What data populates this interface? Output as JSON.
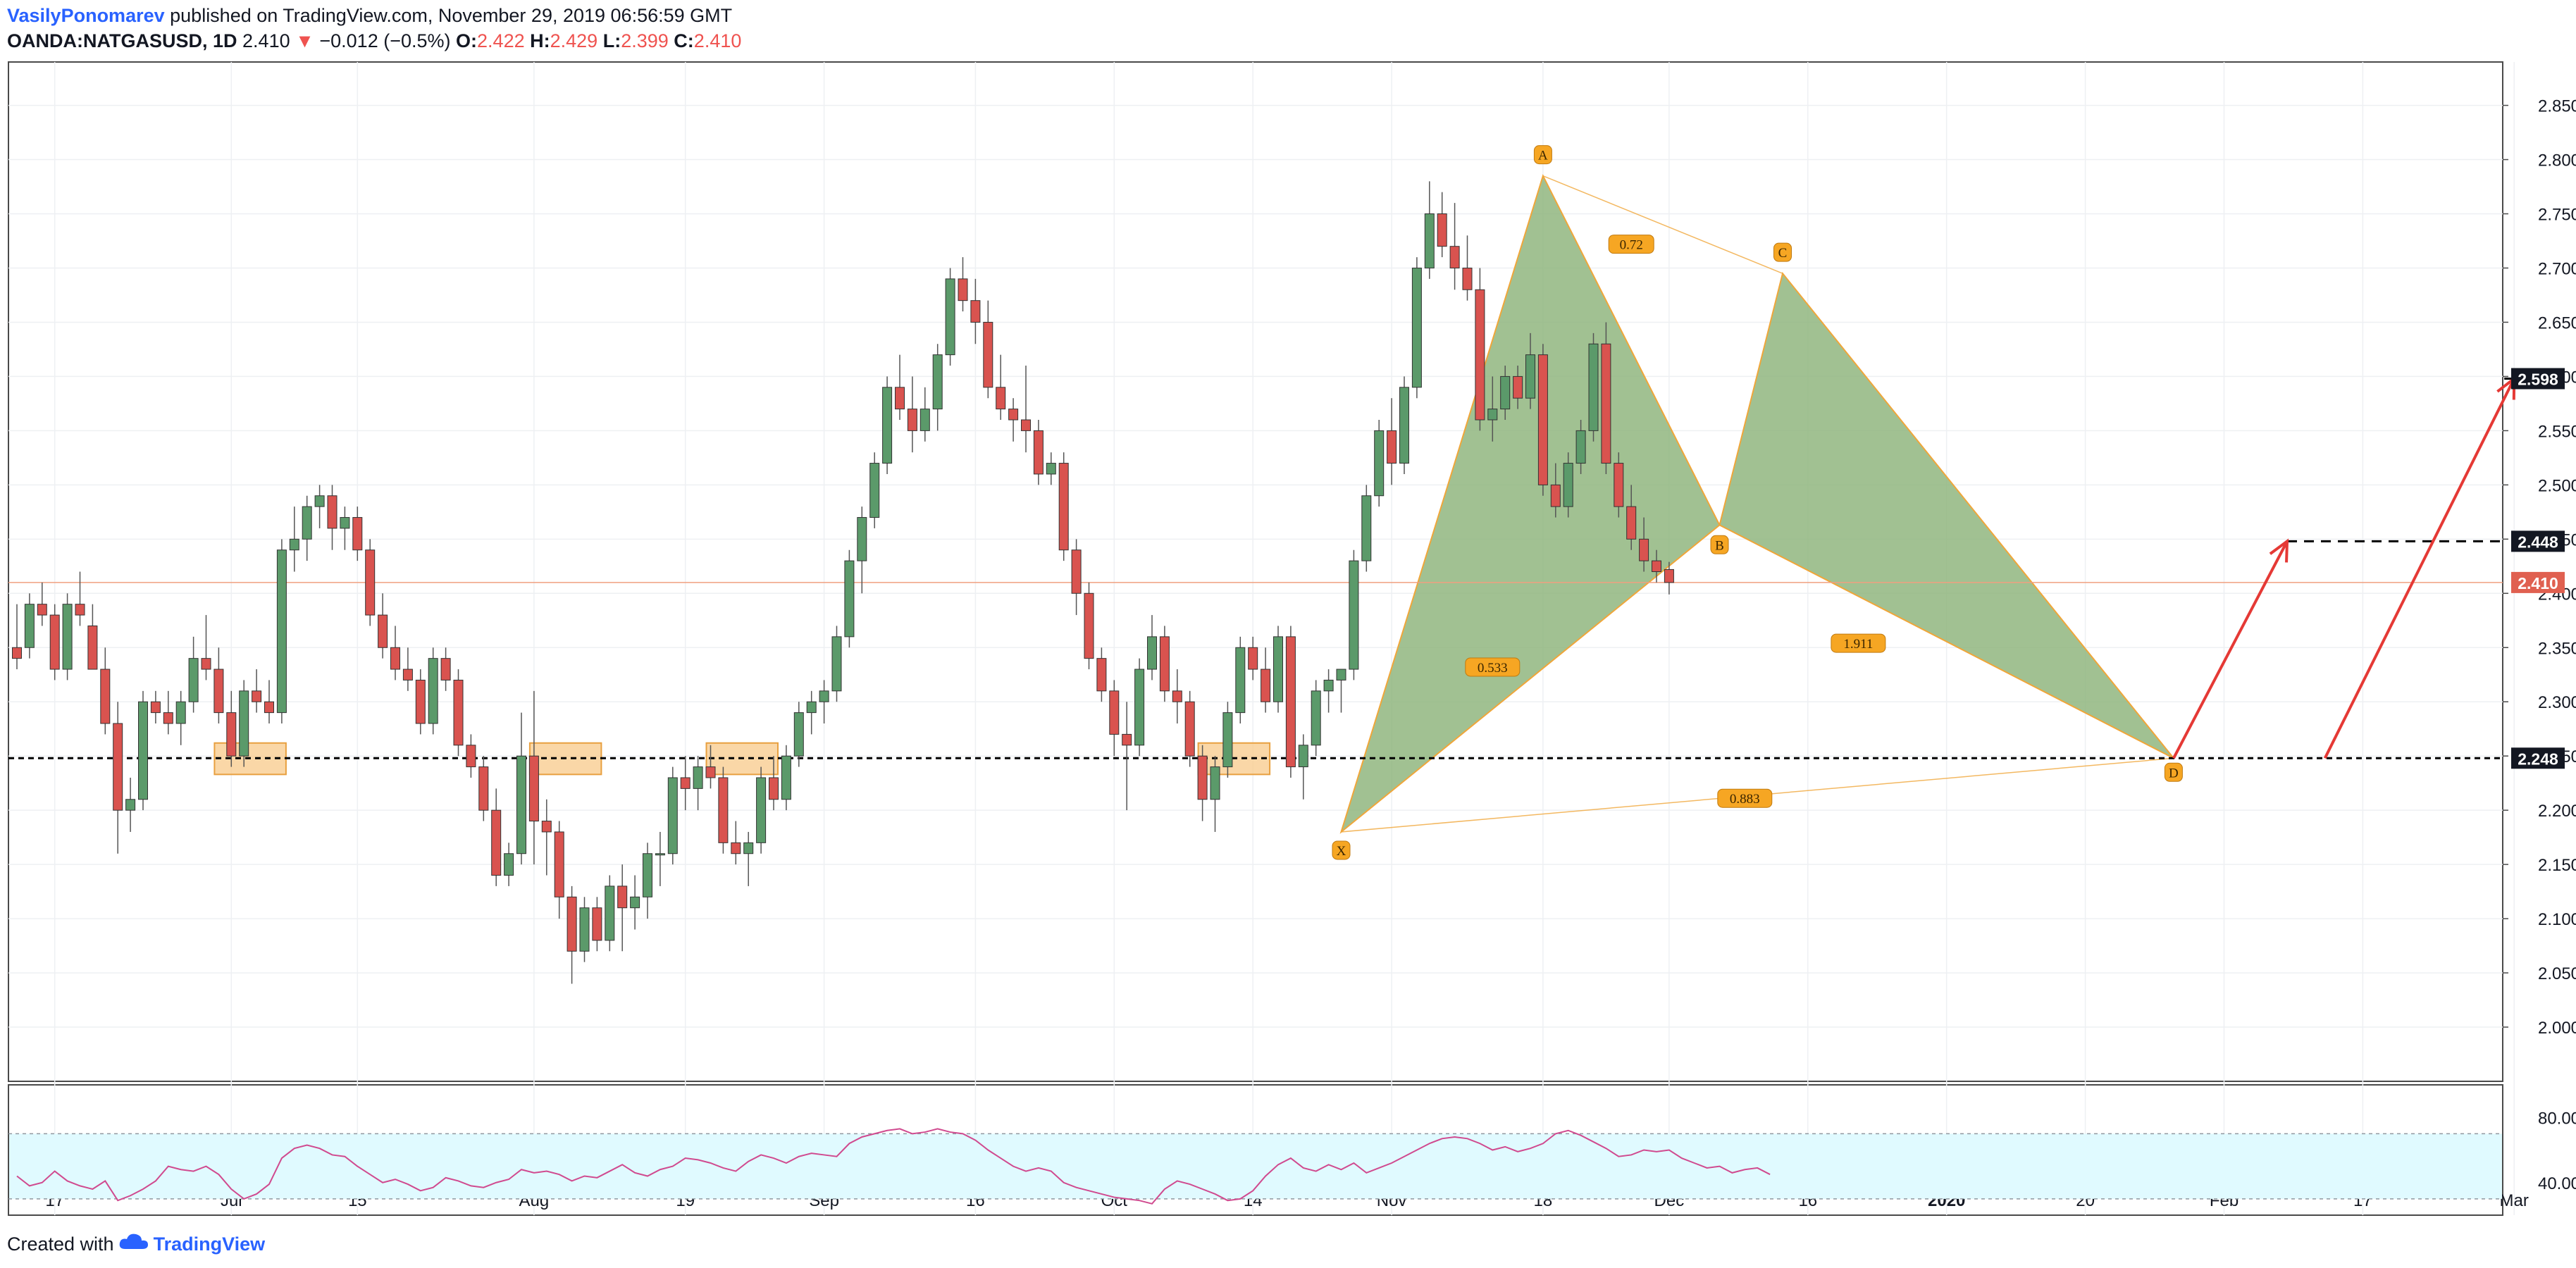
{
  "header": {
    "author": "VasilyPonomarev",
    "published_text": "published on TradingView.com, November 29, 2019 06:56:59 GMT",
    "symbol": "OANDA:NATGASUSD, 1D",
    "last": "2.410",
    "change": "−0.012 (−0.5%)",
    "open_label": "O:",
    "open": "2.422",
    "high_label": "H:",
    "high": "2.429",
    "low_label": "L:",
    "low": "2.399",
    "close_label": "C:",
    "close": "2.410"
  },
  "footer": {
    "created_with": "Created with",
    "brand": "TradingView"
  },
  "colors": {
    "up": "#5b9a6a",
    "down": "#d9534f",
    "pattern_fill": "#8cb37a",
    "pattern_edge": "#f0a63a",
    "badge": "#f6a623",
    "arrow": "#e53935",
    "rsi": "#d04a8f",
    "rsi_band": "#e0faff",
    "price_line": "#f0a080",
    "price_label_bg": "#e06050"
  },
  "chart_data": [
    {
      "type": "candlestick",
      "title": "OANDA:NATGASUSD, 1D",
      "ylim": [
        1.95,
        2.89
      ],
      "y_ticks": [
        "2.000",
        "2.050",
        "2.100",
        "2.150",
        "2.200",
        "2.250",
        "2.300",
        "2.350",
        "2.400",
        "2.450",
        "2.500",
        "2.550",
        "2.600",
        "2.650",
        "2.700",
        "2.750",
        "2.800",
        "2.850"
      ],
      "x_ticks": [
        "17",
        "Jul",
        "15",
        "Aug",
        "19",
        "Sep",
        "16",
        "Oct",
        "14",
        "Nov",
        "18",
        "Dec",
        "16",
        "2020",
        "20",
        "Feb",
        "17",
        "Mar"
      ],
      "price_labels": [
        {
          "value": 2.598,
          "text": "2.598",
          "style": "dark"
        },
        {
          "value": 2.448,
          "text": "2.448",
          "style": "dark"
        },
        {
          "value": 2.41,
          "text": "2.410",
          "style": "red"
        },
        {
          "value": 2.248,
          "text": "2.248",
          "style": "dark"
        }
      ],
      "levels": [
        2.598,
        2.448,
        2.248
      ],
      "candles": [
        [
          2.35,
          2.39,
          2.33,
          2.34
        ],
        [
          2.35,
          2.4,
          2.34,
          2.39
        ],
        [
          2.39,
          2.41,
          2.37,
          2.38
        ],
        [
          2.38,
          2.39,
          2.32,
          2.33
        ],
        [
          2.33,
          2.4,
          2.32,
          2.39
        ],
        [
          2.39,
          2.42,
          2.37,
          2.38
        ],
        [
          2.37,
          2.39,
          2.33,
          2.33
        ],
        [
          2.33,
          2.35,
          2.27,
          2.28
        ],
        [
          2.28,
          2.3,
          2.16,
          2.2
        ],
        [
          2.2,
          2.23,
          2.18,
          2.21
        ],
        [
          2.21,
          2.31,
          2.2,
          2.3
        ],
        [
          2.3,
          2.31,
          2.28,
          2.29
        ],
        [
          2.29,
          2.31,
          2.27,
          2.28
        ],
        [
          2.28,
          2.31,
          2.26,
          2.3
        ],
        [
          2.3,
          2.36,
          2.29,
          2.34
        ],
        [
          2.34,
          2.38,
          2.32,
          2.33
        ],
        [
          2.33,
          2.35,
          2.28,
          2.29
        ],
        [
          2.29,
          2.31,
          2.24,
          2.25
        ],
        [
          2.25,
          2.32,
          2.24,
          2.31
        ],
        [
          2.31,
          2.33,
          2.29,
          2.3
        ],
        [
          2.3,
          2.32,
          2.28,
          2.29
        ],
        [
          2.29,
          2.45,
          2.28,
          2.44
        ],
        [
          2.44,
          2.48,
          2.42,
          2.45
        ],
        [
          2.45,
          2.49,
          2.43,
          2.48
        ],
        [
          2.48,
          2.5,
          2.46,
          2.49
        ],
        [
          2.49,
          2.5,
          2.44,
          2.46
        ],
        [
          2.46,
          2.48,
          2.44,
          2.47
        ],
        [
          2.47,
          2.48,
          2.43,
          2.44
        ],
        [
          2.44,
          2.45,
          2.37,
          2.38
        ],
        [
          2.38,
          2.4,
          2.34,
          2.35
        ],
        [
          2.35,
          2.37,
          2.32,
          2.33
        ],
        [
          2.33,
          2.35,
          2.31,
          2.32
        ],
        [
          2.32,
          2.33,
          2.27,
          2.28
        ],
        [
          2.28,
          2.35,
          2.27,
          2.34
        ],
        [
          2.34,
          2.35,
          2.31,
          2.32
        ],
        [
          2.32,
          2.33,
          2.25,
          2.26
        ],
        [
          2.26,
          2.27,
          2.23,
          2.24
        ],
        [
          2.24,
          2.25,
          2.19,
          2.2
        ],
        [
          2.2,
          2.22,
          2.13,
          2.14
        ],
        [
          2.14,
          2.17,
          2.13,
          2.16
        ],
        [
          2.16,
          2.29,
          2.15,
          2.25
        ],
        [
          2.25,
          2.31,
          2.15,
          2.19
        ],
        [
          2.19,
          2.21,
          2.14,
          2.18
        ],
        [
          2.18,
          2.19,
          2.1,
          2.12
        ],
        [
          2.12,
          2.13,
          2.04,
          2.07
        ],
        [
          2.07,
          2.12,
          2.06,
          2.11
        ],
        [
          2.11,
          2.12,
          2.07,
          2.08
        ],
        [
          2.08,
          2.14,
          2.07,
          2.13
        ],
        [
          2.13,
          2.15,
          2.07,
          2.11
        ],
        [
          2.11,
          2.14,
          2.09,
          2.12
        ],
        [
          2.12,
          2.17,
          2.1,
          2.16
        ],
        [
          2.16,
          2.18,
          2.13,
          2.16
        ],
        [
          2.16,
          2.24,
          2.15,
          2.23
        ],
        [
          2.23,
          2.25,
          2.2,
          2.22
        ],
        [
          2.22,
          2.25,
          2.2,
          2.24
        ],
        [
          2.24,
          2.26,
          2.22,
          2.23
        ],
        [
          2.23,
          2.24,
          2.16,
          2.17
        ],
        [
          2.17,
          2.19,
          2.15,
          2.16
        ],
        [
          2.16,
          2.18,
          2.13,
          2.17
        ],
        [
          2.17,
          2.24,
          2.16,
          2.23
        ],
        [
          2.23,
          2.25,
          2.2,
          2.21
        ],
        [
          2.21,
          2.26,
          2.2,
          2.25
        ],
        [
          2.25,
          2.3,
          2.24,
          2.29
        ],
        [
          2.29,
          2.31,
          2.27,
          2.3
        ],
        [
          2.3,
          2.32,
          2.28,
          2.31
        ],
        [
          2.31,
          2.37,
          2.3,
          2.36
        ],
        [
          2.36,
          2.44,
          2.35,
          2.43
        ],
        [
          2.43,
          2.48,
          2.4,
          2.47
        ],
        [
          2.47,
          2.53,
          2.46,
          2.52
        ],
        [
          2.52,
          2.6,
          2.51,
          2.59
        ],
        [
          2.59,
          2.62,
          2.56,
          2.57
        ],
        [
          2.57,
          2.6,
          2.53,
          2.55
        ],
        [
          2.55,
          2.59,
          2.54,
          2.57
        ],
        [
          2.57,
          2.63,
          2.55,
          2.62
        ],
        [
          2.62,
          2.7,
          2.61,
          2.69
        ],
        [
          2.69,
          2.71,
          2.66,
          2.67
        ],
        [
          2.67,
          2.69,
          2.63,
          2.65
        ],
        [
          2.65,
          2.67,
          2.58,
          2.59
        ],
        [
          2.59,
          2.62,
          2.56,
          2.57
        ],
        [
          2.57,
          2.58,
          2.54,
          2.56
        ],
        [
          2.56,
          2.61,
          2.53,
          2.55
        ],
        [
          2.55,
          2.56,
          2.5,
          2.51
        ],
        [
          2.51,
          2.53,
          2.5,
          2.52
        ],
        [
          2.52,
          2.53,
          2.43,
          2.44
        ],
        [
          2.44,
          2.45,
          2.38,
          2.4
        ],
        [
          2.4,
          2.41,
          2.33,
          2.34
        ],
        [
          2.34,
          2.35,
          2.3,
          2.31
        ],
        [
          2.31,
          2.32,
          2.25,
          2.27
        ],
        [
          2.27,
          2.3,
          2.2,
          2.26
        ],
        [
          2.26,
          2.34,
          2.25,
          2.33
        ],
        [
          2.33,
          2.38,
          2.32,
          2.36
        ],
        [
          2.36,
          2.37,
          2.3,
          2.31
        ],
        [
          2.31,
          2.33,
          2.28,
          2.3
        ],
        [
          2.3,
          2.31,
          2.24,
          2.25
        ],
        [
          2.25,
          2.26,
          2.19,
          2.21
        ],
        [
          2.21,
          2.25,
          2.18,
          2.24
        ],
        [
          2.24,
          2.3,
          2.23,
          2.29
        ],
        [
          2.29,
          2.36,
          2.28,
          2.35
        ],
        [
          2.35,
          2.36,
          2.32,
          2.33
        ],
        [
          2.33,
          2.35,
          2.29,
          2.3
        ],
        [
          2.3,
          2.37,
          2.29,
          2.36
        ],
        [
          2.36,
          2.37,
          2.23,
          2.24
        ],
        [
          2.24,
          2.27,
          2.21,
          2.26
        ],
        [
          2.26,
          2.32,
          2.25,
          2.31
        ],
        [
          2.31,
          2.33,
          2.29,
          2.32
        ],
        [
          2.32,
          2.33,
          2.29,
          2.33
        ],
        [
          2.33,
          2.44,
          2.32,
          2.43
        ],
        [
          2.43,
          2.5,
          2.42,
          2.49
        ],
        [
          2.49,
          2.56,
          2.48,
          2.55
        ],
        [
          2.55,
          2.58,
          2.5,
          2.52
        ],
        [
          2.52,
          2.6,
          2.51,
          2.59
        ],
        [
          2.59,
          2.71,
          2.58,
          2.7
        ],
        [
          2.7,
          2.78,
          2.69,
          2.75
        ],
        [
          2.75,
          2.77,
          2.71,
          2.72
        ],
        [
          2.72,
          2.76,
          2.68,
          2.7
        ],
        [
          2.7,
          2.73,
          2.67,
          2.68
        ],
        [
          2.68,
          2.7,
          2.55,
          2.56
        ],
        [
          2.56,
          2.6,
          2.54,
          2.57
        ],
        [
          2.57,
          2.61,
          2.56,
          2.6
        ],
        [
          2.6,
          2.61,
          2.57,
          2.58
        ],
        [
          2.58,
          2.64,
          2.57,
          2.62
        ],
        [
          2.62,
          2.63,
          2.49,
          2.5
        ],
        [
          2.5,
          2.52,
          2.47,
          2.48
        ],
        [
          2.48,
          2.53,
          2.47,
          2.52
        ],
        [
          2.52,
          2.56,
          2.51,
          2.55
        ],
        [
          2.55,
          2.64,
          2.54,
          2.63
        ],
        [
          2.63,
          2.65,
          2.51,
          2.52
        ],
        [
          2.52,
          2.53,
          2.47,
          2.48
        ],
        [
          2.48,
          2.5,
          2.44,
          2.45
        ],
        [
          2.45,
          2.47,
          2.42,
          2.43
        ],
        [
          2.43,
          2.44,
          2.41,
          2.42
        ],
        [
          2.422,
          2.429,
          2.399,
          2.41
        ]
      ],
      "pattern": {
        "points": [
          {
            "label": "X",
            "index": 105,
            "value": 2.18
          },
          {
            "label": "A",
            "index": 121,
            "value": 2.785
          },
          {
            "label": "B",
            "index": 135,
            "value": 2.463
          },
          {
            "label": "C",
            "index": 140,
            "value": 2.695
          },
          {
            "label": "D",
            "index": 171,
            "value": 2.248
          }
        ],
        "ratios": [
          {
            "text": "0.72",
            "between": "XA-C"
          },
          {
            "text": "0.533",
            "between": "XB"
          },
          {
            "text": "1.911",
            "between": "BD"
          },
          {
            "text": "0.883",
            "between": "XD"
          }
        ]
      },
      "support_zone_boxes": [
        {
          "start": 16,
          "end": 21
        },
        {
          "start": 41,
          "end": 46
        },
        {
          "start": 55,
          "end": 60
        },
        {
          "start": 94,
          "end": 99
        }
      ],
      "projection_arrows": [
        {
          "from_index": 171,
          "from": 2.248,
          "to_index": 180,
          "to": 2.448
        },
        {
          "from_index": 183,
          "from": 2.248,
          "to_index": 198,
          "to": 2.598
        }
      ]
    },
    {
      "type": "line",
      "title": "RSI",
      "ylim": [
        20,
        100
      ],
      "y_ticks": [
        "80.00",
        "40.00"
      ],
      "bands": [
        30,
        70
      ],
      "values": [
        44,
        38,
        40,
        47,
        41,
        38,
        36,
        41,
        29,
        32,
        36,
        41,
        50,
        48,
        47,
        50,
        45,
        36,
        30,
        33,
        39,
        55,
        61,
        63,
        61,
        57,
        56,
        50,
        45,
        40,
        42,
        39,
        35,
        37,
        43,
        41,
        38,
        37,
        40,
        42,
        48,
        46,
        47,
        45,
        41,
        44,
        43,
        47,
        51,
        46,
        44,
        48,
        50,
        55,
        54,
        52,
        49,
        47,
        53,
        57,
        55,
        52,
        56,
        58,
        57,
        56,
        64,
        68,
        70,
        72,
        73,
        70,
        71,
        73,
        71,
        70,
        66,
        60,
        55,
        50,
        47,
        49,
        47,
        40,
        37,
        35,
        33,
        31,
        30,
        29,
        27,
        36,
        41,
        39,
        36,
        33,
        29,
        30,
        35,
        44,
        51,
        55,
        49,
        47,
        51,
        48,
        52,
        46,
        49,
        52,
        56,
        60,
        64,
        67,
        68,
        67,
        64,
        60,
        62,
        59,
        61,
        64,
        70,
        72,
        69,
        65,
        61,
        56,
        57,
        60,
        59,
        60,
        55,
        52,
        49,
        50,
        46,
        48,
        49,
        45
      ]
    }
  ]
}
